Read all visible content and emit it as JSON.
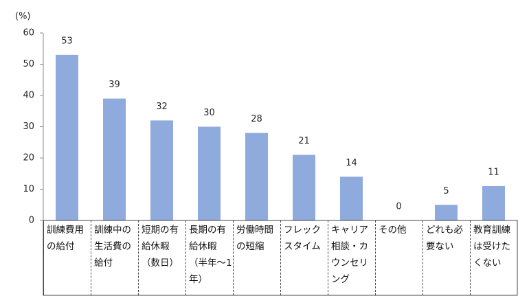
{
  "chart_data": {
    "type": "bar",
    "y_label": "(%)",
    "categories": [
      "訓練費用\nの給付",
      "訓練中の\n生活費の\n給付",
      "短期の有\n給休暇\n（数日）",
      "長期の有\n給休暇\n（半年～1\n年）",
      "労働時間\nの短縮",
      "フレック\nスタイム",
      "キャリア\n相談・カ\nウンセリ\nング",
      "その他",
      "どれも必\n要ない",
      "教育訓練\nは受けた\nくない"
    ],
    "values": [
      53,
      39,
      32,
      30,
      28,
      21,
      14,
      0,
      5,
      11
    ],
    "color": "#8faadc",
    "ylim": [
      0,
      60
    ],
    "yticks": [
      0,
      10,
      20,
      30,
      40,
      50,
      60
    ],
    "grid": false
  }
}
